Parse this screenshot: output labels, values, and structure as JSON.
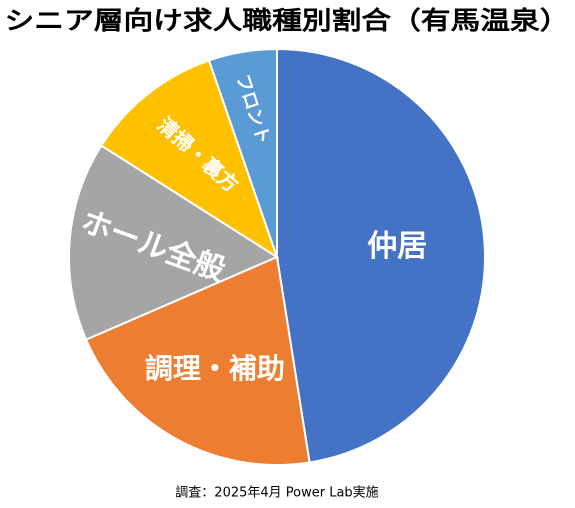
{
  "chart_data": {
    "type": "pie",
    "title": "シニア層向け求人職種別割合（有馬温泉）",
    "categories": [
      "仲居",
      "調理・補助",
      "ホール全般",
      "清掃・裏方",
      "フロント"
    ],
    "values": [
      47.5,
      21,
      15.5,
      10.7,
      5.3
    ],
    "colors": [
      "#4472c4",
      "#ed7d31",
      "#a5a5a5",
      "#ffc000",
      "#5b9bd5"
    ],
    "note": "調査：2025年4月 Power Lab実施"
  }
}
